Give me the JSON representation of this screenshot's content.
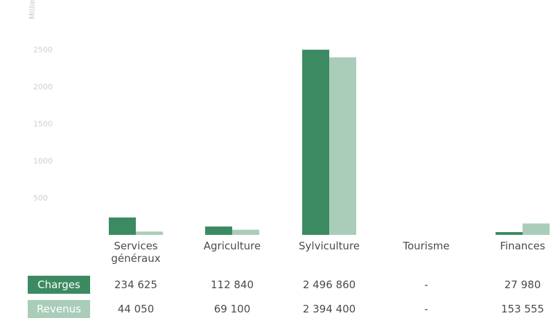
{
  "chart_data": {
    "type": "bar",
    "ylabel": "Milliers",
    "ylim": [
      0,
      2700
    ],
    "yticks": [
      "500",
      "1000",
      "1500",
      "2000",
      "2500"
    ],
    "categories": [
      "Services\ngénéraux",
      "Agriculture",
      "Sylviculture",
      "Tourisme",
      "Finances"
    ],
    "series": [
      {
        "name": "Charges",
        "values": [
          234.625,
          112.84,
          2496.86,
          0,
          27.98
        ],
        "labels": [
          "234 625",
          "112 840",
          "2 496 860",
          "-",
          "27 980"
        ],
        "color": "#3c8a62"
      },
      {
        "name": "Revenus",
        "values": [
          44.05,
          69.1,
          2394.4,
          0,
          153.555
        ],
        "labels": [
          "44 050",
          "69 100",
          "2 394 400",
          "-",
          "153 555"
        ],
        "color": "#a9cdb8"
      }
    ],
    "grid": false
  }
}
